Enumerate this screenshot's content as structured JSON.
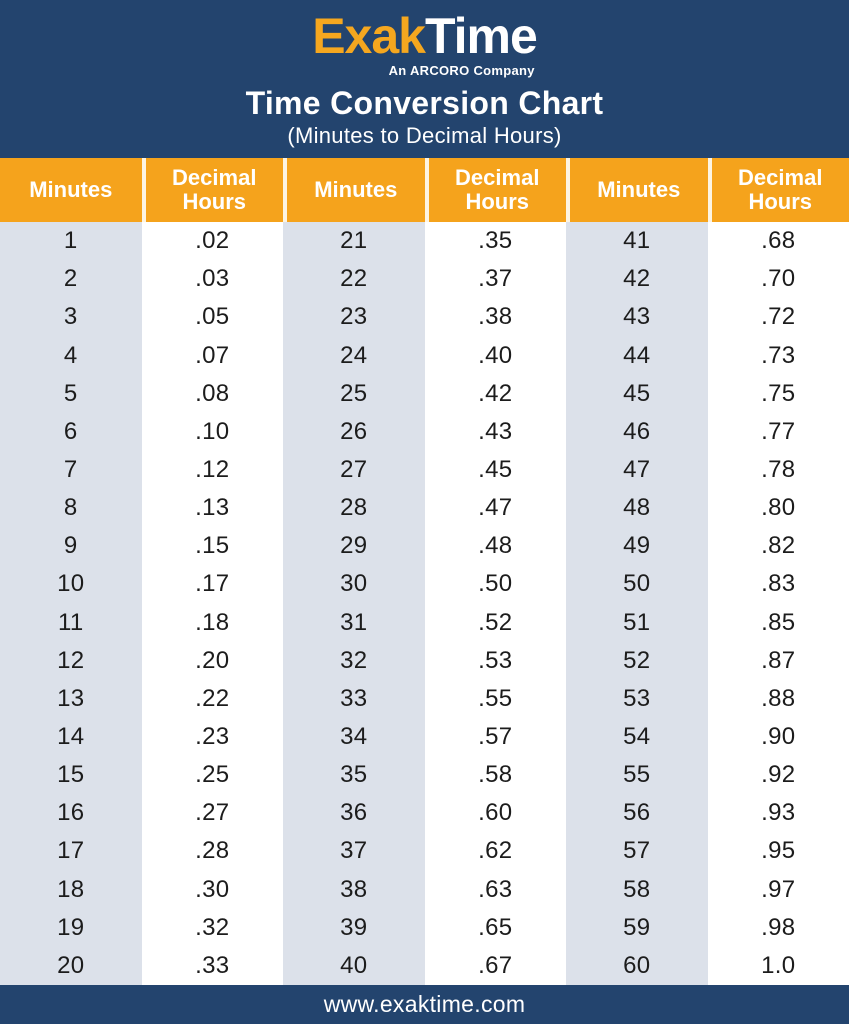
{
  "colors": {
    "navy_background": "#23446e",
    "header_orange": "#f5a31c",
    "logo_orange": "#f5a71f",
    "minutes_column_gray": "#dce1ea",
    "decimal_column_white": "#ffffff",
    "body_text": "#1c1c1c",
    "header_text": "#ffffff"
  },
  "header": {
    "logo_primary": "Exak",
    "logo_secondary": "Time",
    "logo_tagline": "An ARCORO Company",
    "title": "Time Conversion Chart",
    "subtitle": "(Minutes to Decimal Hours)"
  },
  "table": {
    "column_headers": [
      "Minutes",
      "Decimal Hours",
      "Minutes",
      "Decimal Hours",
      "Minutes",
      "Decimal Hours"
    ],
    "rows": [
      [
        "1",
        ".02",
        "21",
        ".35",
        "41",
        ".68"
      ],
      [
        "2",
        ".03",
        "22",
        ".37",
        "42",
        ".70"
      ],
      [
        "3",
        ".05",
        "23",
        ".38",
        "43",
        ".72"
      ],
      [
        "4",
        ".07",
        "24",
        ".40",
        "44",
        ".73"
      ],
      [
        "5",
        ".08",
        "25",
        ".42",
        "45",
        ".75"
      ],
      [
        "6",
        ".10",
        "26",
        ".43",
        "46",
        ".77"
      ],
      [
        "7",
        ".12",
        "27",
        ".45",
        "47",
        ".78"
      ],
      [
        "8",
        ".13",
        "28",
        ".47",
        "48",
        ".80"
      ],
      [
        "9",
        ".15",
        "29",
        ".48",
        "49",
        ".82"
      ],
      [
        "10",
        ".17",
        "30",
        ".50",
        "50",
        ".83"
      ],
      [
        "11",
        ".18",
        "31",
        ".52",
        "51",
        ".85"
      ],
      [
        "12",
        ".20",
        "32",
        ".53",
        "52",
        ".87"
      ],
      [
        "13",
        ".22",
        "33",
        ".55",
        "53",
        ".88"
      ],
      [
        "14",
        ".23",
        "34",
        ".57",
        "54",
        ".90"
      ],
      [
        "15",
        ".25",
        "35",
        ".58",
        "55",
        ".92"
      ],
      [
        "16",
        ".27",
        "36",
        ".60",
        "56",
        ".93"
      ],
      [
        "17",
        ".28",
        "37",
        ".62",
        "57",
        ".95"
      ],
      [
        "18",
        ".30",
        "38",
        ".63",
        "58",
        ".97"
      ],
      [
        "19",
        ".32",
        "39",
        ".65",
        "59",
        ".98"
      ],
      [
        "20",
        ".33",
        "40",
        ".67",
        "60",
        "1.0"
      ]
    ]
  },
  "footer": {
    "url": "www.exaktime.com"
  },
  "chart_data": {
    "type": "table",
    "title": "Time Conversion Chart (Minutes to Decimal Hours)",
    "columns": [
      "Minutes",
      "Decimal Hours"
    ],
    "minutes": [
      1,
      2,
      3,
      4,
      5,
      6,
      7,
      8,
      9,
      10,
      11,
      12,
      13,
      14,
      15,
      16,
      17,
      18,
      19,
      20,
      21,
      22,
      23,
      24,
      25,
      26,
      27,
      28,
      29,
      30,
      31,
      32,
      33,
      34,
      35,
      36,
      37,
      38,
      39,
      40,
      41,
      42,
      43,
      44,
      45,
      46,
      47,
      48,
      49,
      50,
      51,
      52,
      53,
      54,
      55,
      56,
      57,
      58,
      59,
      60
    ],
    "decimal_hours": [
      ".02",
      ".03",
      ".05",
      ".07",
      ".08",
      ".10",
      ".12",
      ".13",
      ".15",
      ".17",
      ".18",
      ".20",
      ".22",
      ".23",
      ".25",
      ".27",
      ".28",
      ".30",
      ".32",
      ".33",
      ".35",
      ".37",
      ".38",
      ".40",
      ".42",
      ".43",
      ".45",
      ".47",
      ".48",
      ".50",
      ".52",
      ".53",
      ".55",
      ".57",
      ".58",
      ".60",
      ".62",
      ".63",
      ".65",
      ".67",
      ".68",
      ".70",
      ".72",
      ".73",
      ".75",
      ".77",
      ".78",
      ".80",
      ".82",
      ".83",
      ".85",
      ".87",
      ".88",
      ".90",
      ".92",
      ".93",
      ".95",
      ".97",
      ".98",
      "1.0"
    ]
  }
}
